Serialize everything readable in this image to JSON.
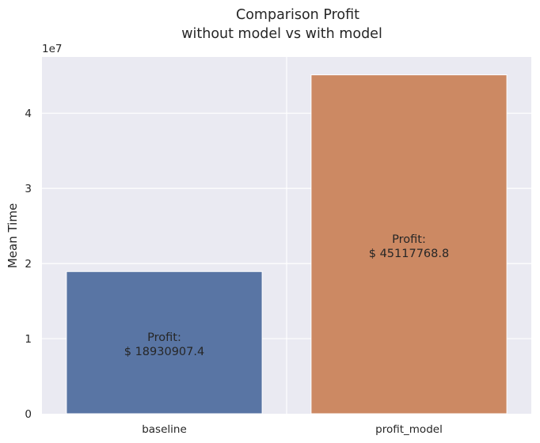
{
  "chart_data": {
    "type": "bar",
    "title_lines": [
      "Comparison Profit",
      "without model vs with model"
    ],
    "xlabel": "",
    "ylabel": "Mean Time",
    "y_offset_label": "1e7",
    "y_scale": 10000000,
    "ylim": [
      0,
      47500000
    ],
    "y_ticks": [
      0,
      10000000,
      20000000,
      30000000,
      40000000
    ],
    "y_tick_labels": [
      "0",
      "1",
      "2",
      "3",
      "4"
    ],
    "categories": [
      "baseline",
      "profit_model"
    ],
    "values": [
      18930907.4,
      45117768.8
    ],
    "bar_colors": [
      "#5975a4",
      "#cc8963"
    ],
    "annotations": [
      {
        "line1": "Profit:",
        "line2": "$ 18930907.4"
      },
      {
        "line1": "Profit:",
        "line2": "$ 45117768.8"
      }
    ],
    "grid": true,
    "legend": "none",
    "background": "#eaeaf2"
  }
}
